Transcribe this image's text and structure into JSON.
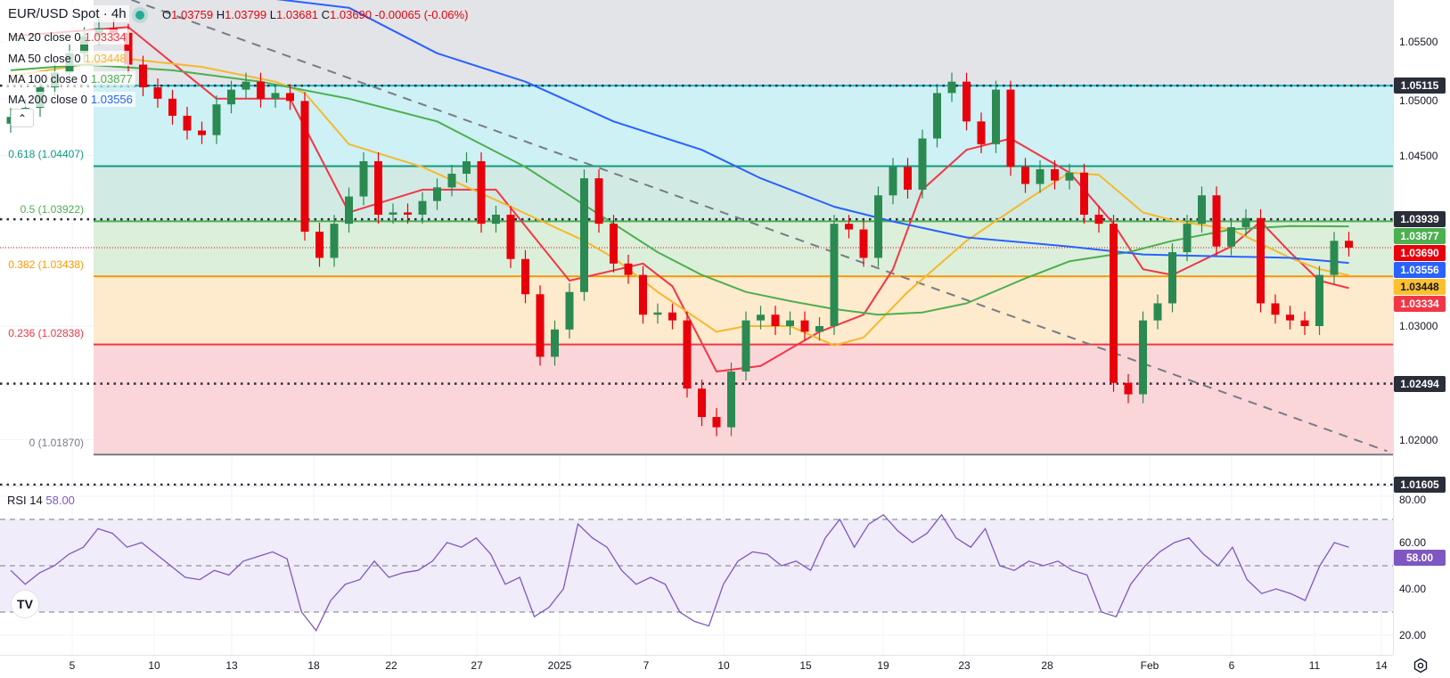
{
  "header": {
    "symbol": "EUR/USD Spot · 4h",
    "status_color": "#22ab94",
    "o_label": "O",
    "o": "1.03759",
    "h_label": "H",
    "h": "1.03799",
    "l_label": "L",
    "l": "1.03681",
    "c_label": "C",
    "c": "1.03690",
    "change": "-0.00065 (-0.06%)"
  },
  "indicators": [
    {
      "label": "MA 20 close 0",
      "value": "1.03334",
      "color": "#f23645"
    },
    {
      "label": "MA 50 close 0",
      "value": "1.03448",
      "color": "#fbc02d"
    },
    {
      "label": "MA 100 close 0",
      "value": "1.03877",
      "color": "#4caf50"
    },
    {
      "label": "MA 200 close 0",
      "value": "1.03556",
      "color": "#2962ff"
    }
  ],
  "collapse_icon": "chevron-up-icon",
  "rsi": {
    "label": "RSI 14",
    "value": "58.00",
    "color": "#7e57c2"
  },
  "chart_data": {
    "type": "candlestick",
    "symbol": "EUR/USD Spot",
    "timeframe": "4h",
    "ylim": [
      1.0162,
      1.0587
    ],
    "close": [
      1.0484,
      1.0492,
      1.051,
      1.0523,
      1.054,
      1.0555,
      1.0562,
      1.0558,
      1.053,
      1.051,
      1.05,
      1.0485,
      1.0472,
      1.0468,
      1.0495,
      1.0508,
      1.0515,
      1.05,
      1.0505,
      1.0498,
      1.0383,
      1.036,
      1.039,
      1.0414,
      1.0445,
      1.0398,
      1.04,
      1.0398,
      1.041,
      1.0422,
      1.0434,
      1.0445,
      1.039,
      1.0398,
      1.0359,
      1.0328,
      1.0273,
      1.0297,
      1.033,
      1.043,
      1.039,
      1.0355,
      1.0345,
      1.031,
      1.0312,
      1.0305,
      1.0245,
      1.022,
      1.0211,
      1.026,
      1.0305,
      1.031,
      1.03,
      1.0305,
      1.0295,
      1.03,
      1.039,
      1.0385,
      1.036,
      1.0415,
      1.044,
      1.042,
      1.0465,
      1.0505,
      1.0515,
      1.048,
      1.046,
      1.0508,
      1.044,
      1.0425,
      1.0438,
      1.0428,
      1.0435,
      1.0398,
      1.039,
      1.025,
      1.024,
      1.0305,
      1.032,
      1.0365,
      1.039,
      1.0415,
      1.037,
      1.0387,
      1.0395,
      1.032,
      1.031,
      1.0305,
      1.03,
      1.0345,
      1.0375,
      1.0369
    ],
    "up_color": "#2b8a52",
    "down_color": "#e8000b",
    "moving_averages": [
      {
        "name": "MA 20",
        "color": "#f23645",
        "points": [
          [
            0,
            1.0555
          ],
          [
            8,
            1.0563
          ],
          [
            14,
            1.05
          ],
          [
            19,
            1.05
          ],
          [
            23,
            1.04
          ],
          [
            28,
            1.042
          ],
          [
            33,
            1.042
          ],
          [
            38,
            1.034
          ],
          [
            43,
            1.0355
          ],
          [
            45,
            1.0335
          ],
          [
            48,
            1.026
          ],
          [
            51,
            1.0265
          ],
          [
            55,
            1.0295
          ],
          [
            58,
            1.031
          ],
          [
            60,
            1.035
          ],
          [
            62,
            1.042
          ],
          [
            65,
            1.0455
          ],
          [
            68,
            1.0465
          ],
          [
            72,
            1.0435
          ],
          [
            75,
            1.039
          ],
          [
            77,
            1.035
          ],
          [
            79,
            1.0345
          ],
          [
            83,
            1.037
          ],
          [
            85,
            1.0392
          ],
          [
            87,
            1.0365
          ],
          [
            89,
            1.034
          ],
          [
            91,
            1.03334
          ]
        ]
      },
      {
        "name": "MA 50",
        "color": "#f5b82e",
        "points": [
          [
            0,
            1.052
          ],
          [
            5,
            1.053
          ],
          [
            8,
            1.0535
          ],
          [
            13,
            1.0528
          ],
          [
            18,
            1.0515
          ],
          [
            20,
            1.0505
          ],
          [
            23,
            1.046
          ],
          [
            28,
            1.044
          ],
          [
            34,
            1.0405
          ],
          [
            39,
            1.0375
          ],
          [
            41,
            1.036
          ],
          [
            44,
            1.033
          ],
          [
            48,
            1.0295
          ],
          [
            50,
            1.03
          ],
          [
            53,
            1.03
          ],
          [
            56,
            1.0283
          ],
          [
            58,
            1.029
          ],
          [
            61,
            1.033
          ],
          [
            65,
            1.0375
          ],
          [
            69,
            1.041
          ],
          [
            72,
            1.0435
          ],
          [
            74,
            1.0433
          ],
          [
            77,
            1.04
          ],
          [
            79,
            1.0393
          ],
          [
            83,
            1.0385
          ],
          [
            87,
            1.036
          ],
          [
            89,
            1.035
          ],
          [
            91,
            1.03448
          ]
        ]
      },
      {
        "name": "MA 100",
        "color": "#4caf50",
        "points": [
          [
            0,
            1.0525
          ],
          [
            5,
            1.053
          ],
          [
            11,
            1.0525
          ],
          [
            17,
            1.0515
          ],
          [
            23,
            1.05
          ],
          [
            29,
            1.048
          ],
          [
            35,
            1.044
          ],
          [
            38,
            1.0415
          ],
          [
            41,
            1.039
          ],
          [
            44,
            1.0365
          ],
          [
            47,
            1.0345
          ],
          [
            50,
            1.033
          ],
          [
            53,
            1.0322
          ],
          [
            56,
            1.0315
          ],
          [
            59,
            1.031
          ],
          [
            62,
            1.0312
          ],
          [
            65,
            1.032
          ],
          [
            69,
            1.0342
          ],
          [
            72,
            1.0357
          ],
          [
            76,
            1.0365
          ],
          [
            79,
            1.0375
          ],
          [
            83,
            1.0385
          ],
          [
            87,
            1.0388
          ],
          [
            91,
            1.03877
          ]
        ]
      },
      {
        "name": "MA 200",
        "color": "#2962ff",
        "points": [
          [
            0,
            1.062
          ],
          [
            10,
            1.06
          ],
          [
            23,
            1.058
          ],
          [
            29,
            1.054
          ],
          [
            35,
            1.0515
          ],
          [
            41,
            1.048
          ],
          [
            47,
            1.0455
          ],
          [
            51,
            1.043
          ],
          [
            56,
            1.0405
          ],
          [
            60,
            1.0392
          ],
          [
            65,
            1.0378
          ],
          [
            72,
            1.037
          ],
          [
            77,
            1.0363
          ],
          [
            80,
            1.0362
          ],
          [
            87,
            1.036
          ],
          [
            91,
            1.03556
          ]
        ]
      }
    ],
    "trendline": {
      "style": "dashed",
      "color": "#787b86",
      "points": [
        [
          8.2,
          1.0587
        ],
        [
          93.6,
          1.019
        ]
      ]
    },
    "fibonacci": {
      "above_fill": "#e3e4e8",
      "levels": [
        {
          "ratio": "1",
          "price": 1.05115,
          "line": "#00bcd4",
          "fill": "#cdf1f4",
          "label": ""
        },
        {
          "ratio": "0.618",
          "price": 1.04407,
          "line": "#0e9a80",
          "fill": "#d2eae4",
          "label": "0.618 (1.04407)"
        },
        {
          "ratio": "0.5",
          "price": 1.03922,
          "line": "#4caf50",
          "fill": "#dcefda",
          "label": "0.5 (1.03922)"
        },
        {
          "ratio": "0.382",
          "price": 1.03438,
          "line": "#ff9800",
          "fill": "#feeacd",
          "label": "0.382 (1.03438)"
        },
        {
          "ratio": "0.236",
          "price": 1.02838,
          "line": "#f23645",
          "fill": "#fad6d9",
          "label": "0.236 (1.02838)"
        },
        {
          "ratio": "0",
          "price": 1.0187,
          "line": "#787b86",
          "fill": "",
          "label": "0 (1.01870)"
        }
      ]
    },
    "horizontal_lines": [
      1.05115,
      1.03939,
      1.02494,
      1.01605
    ],
    "last_price": 1.0369,
    "price_ticks": [
      "1.05500",
      "1.05000",
      "1.04500",
      "1.03000",
      "1.02000"
    ],
    "price_badges": [
      {
        "text": "1.05115",
        "bg": "#2a2e39",
        "fg": "#ffffff"
      },
      {
        "text": "1.03939",
        "bg": "#2a2e39",
        "fg": "#ffffff"
      },
      {
        "text": "1.03877",
        "bg": "#4caf50",
        "fg": "#ffffff"
      },
      {
        "text": "1.03690",
        "bg": "#e8000b",
        "fg": "#ffffff"
      },
      {
        "text": "1.03556",
        "bg": "#2962ff",
        "fg": "#ffffff"
      },
      {
        "text": "1.03448",
        "bg": "#fbc02d",
        "fg": "#131722"
      },
      {
        "text": "1.03334",
        "bg": "#f23645",
        "fg": "#ffffff"
      },
      {
        "text": "1.02494",
        "bg": "#2a2e39",
        "fg": "#ffffff"
      },
      {
        "text": "1.01605",
        "bg": "#2a2e39",
        "fg": "#ffffff"
      }
    ],
    "date_ticks": [
      "5",
      "10",
      "13",
      "18",
      "22",
      "27",
      "2025",
      "7",
      "10",
      "15",
      "19",
      "23",
      "28",
      "Feb",
      "6",
      "11",
      "14"
    ],
    "rsi_chart": {
      "type": "line",
      "color": "#7e57c2",
      "ylim": [
        14,
        86
      ],
      "band": [
        30,
        70
      ],
      "midline": 50,
      "band_fill": "#f0ecf9",
      "ticks": [
        "80.00",
        "60.00",
        "40.00",
        "20.00"
      ],
      "values": [
        48,
        42,
        47,
        50,
        55,
        58,
        66,
        64,
        58,
        60,
        55,
        50,
        45,
        44,
        48,
        46,
        52,
        54,
        56,
        53,
        30,
        22,
        35,
        42,
        44,
        52,
        45,
        47,
        48,
        52,
        60,
        58,
        62,
        55,
        42,
        45,
        28,
        32,
        40,
        68,
        62,
        58,
        48,
        42,
        45,
        42,
        30,
        26,
        24,
        42,
        52,
        56,
        55,
        50,
        52,
        48,
        62,
        70,
        58,
        68,
        72,
        65,
        60,
        64,
        72,
        62,
        58,
        66,
        50,
        48,
        52,
        50,
        52,
        48,
        46,
        30,
        28,
        42,
        50,
        56,
        60,
        62,
        55,
        50,
        58,
        44,
        38,
        40,
        38,
        35,
        50,
        60,
        58
      ]
    }
  },
  "footer": {
    "settings_icon": "gear-icon",
    "logo": "TV"
  }
}
